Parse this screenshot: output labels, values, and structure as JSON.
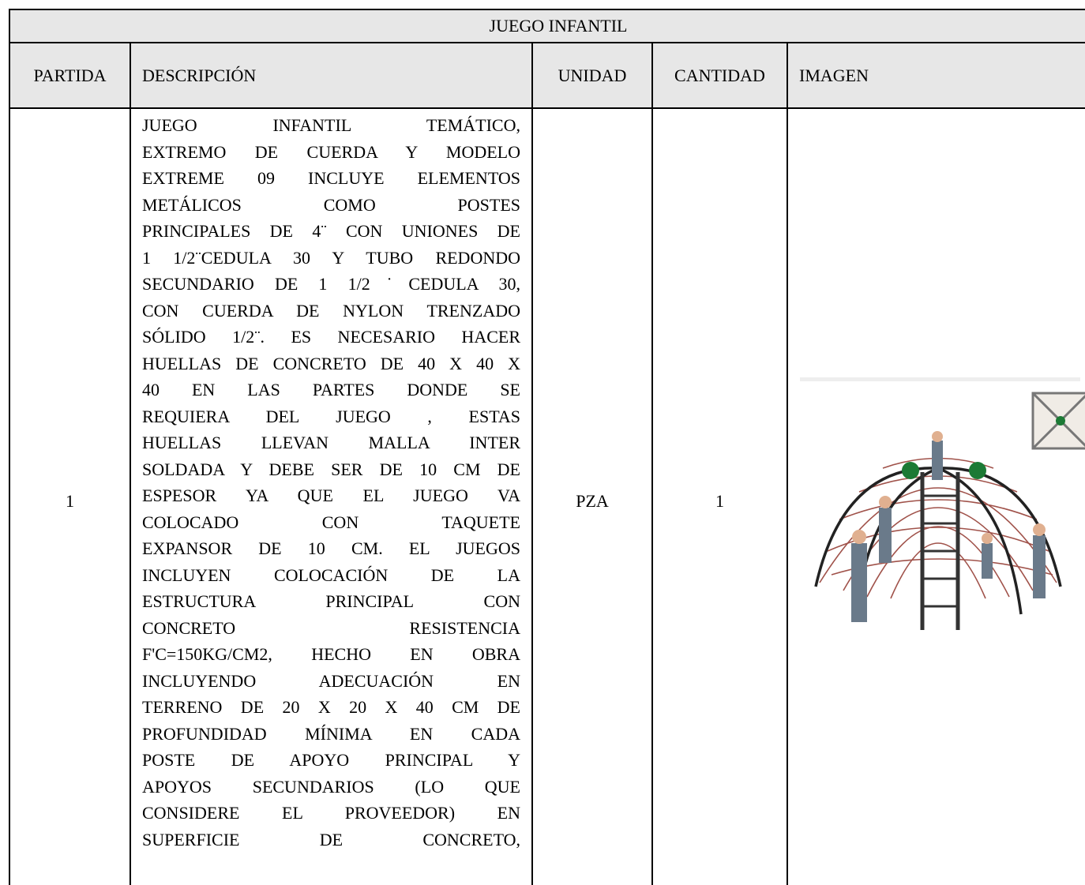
{
  "header": {
    "title": "JUEGO INFANTIL"
  },
  "table": {
    "columns": [
      "PARTIDA",
      "DESCRIPCIÓN",
      "UNIDAD",
      "CANTIDAD",
      "IMAGEN"
    ],
    "rows": [
      {
        "partida": 1,
        "descripcion": [
          "JUEGO INFANTIL TEMÁTICO,",
          "EXTREMO DE CUERDA  Y MODELO",
          "EXTREME 09 INCLUYE ELEMENTOS",
          "METÁLICOS COMO POSTES",
          "PRINCIPALES DE 4¨ CON UNIONES DE",
          "1 1/2¨CEDULA 30 Y TUBO REDONDO",
          "SECUNDARIO DE 1 1/2˙CEDULA 30,",
          "CON CUERDA DE NYLON TRENZADO",
          "SÓLIDO 1/2¨. ES NECESARIO HACER",
          "HUELLAS DE CONCRETO DE 40 X 40 X",
          "40  EN LAS PARTES DONDE SE",
          "REQUIERA DEL JUEGO , ESTAS",
          "HUELLAS LLEVAN MALLA INTER",
          "SOLDADA Y DEBE SER DE 10 CM DE",
          "ESPESOR  YA QUE EL JUEGO VA",
          "COLOCADO CON TAQUETE",
          "EXPANSOR DE 10 CM.  EL JUEGOS",
          "INCLUYEN COLOCACIÓN DE LA",
          "ESTRUCTURA PRINCIPAL CON",
          "CONCRETO RESISTENCIA",
          "F'C=150KG/CM2, HECHO EN OBRA",
          "INCLUYENDO ADECUACIÓN EN",
          "TERRENO DE 20 X 20 X 40 CM DE",
          "PROFUNDIDAD MÍNIMA EN CADA",
          "POSTE DE APOYO PRINCIPAL Y",
          "APOYOS SECUNDARIOS (LO QUE",
          "CONSIDERE EL PROVEEDOR) EN",
          "SUPERFICIE DE CONCRETO,"
        ],
        "unidad": "PZA",
        "cantidad": 1
      }
    ]
  }
}
